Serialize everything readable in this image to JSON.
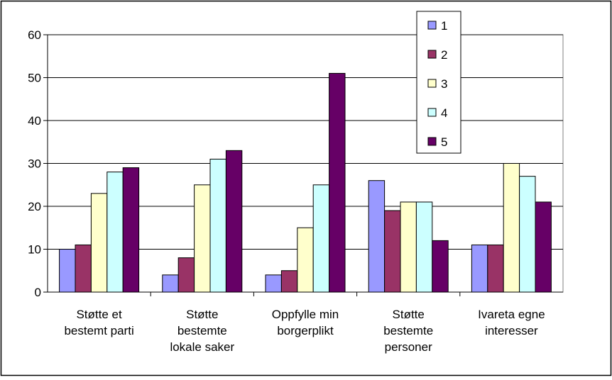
{
  "chart_data": {
    "type": "bar",
    "categories": [
      [
        "Støtte et",
        "bestemt parti"
      ],
      [
        "Støtte",
        "bestemte",
        "lokale saker"
      ],
      [
        "Oppfylle min",
        "borgerplikt"
      ],
      [
        "Støtte",
        "bestemte",
        "personer"
      ],
      [
        "Ivareta egne",
        "interesser"
      ]
    ],
    "series": [
      {
        "name": "1",
        "color": "#9999ff",
        "values": [
          10,
          4,
          4,
          26,
          11
        ]
      },
      {
        "name": "2",
        "color": "#993366",
        "values": [
          11,
          8,
          5,
          19,
          11
        ]
      },
      {
        "name": "3",
        "color": "#ffffcc",
        "values": [
          23,
          25,
          15,
          21,
          30
        ]
      },
      {
        "name": "4",
        "color": "#ccffff",
        "values": [
          28,
          31,
          25,
          21,
          27
        ]
      },
      {
        "name": "5",
        "color": "#660066",
        "values": [
          29,
          33,
          51,
          12,
          21
        ]
      }
    ],
    "ylim": [
      0,
      60
    ],
    "yticks": [
      0,
      10,
      20,
      30,
      40,
      50,
      60
    ],
    "grid": true,
    "legend": "top-right",
    "title": "",
    "xlabel": "",
    "ylabel": ""
  }
}
